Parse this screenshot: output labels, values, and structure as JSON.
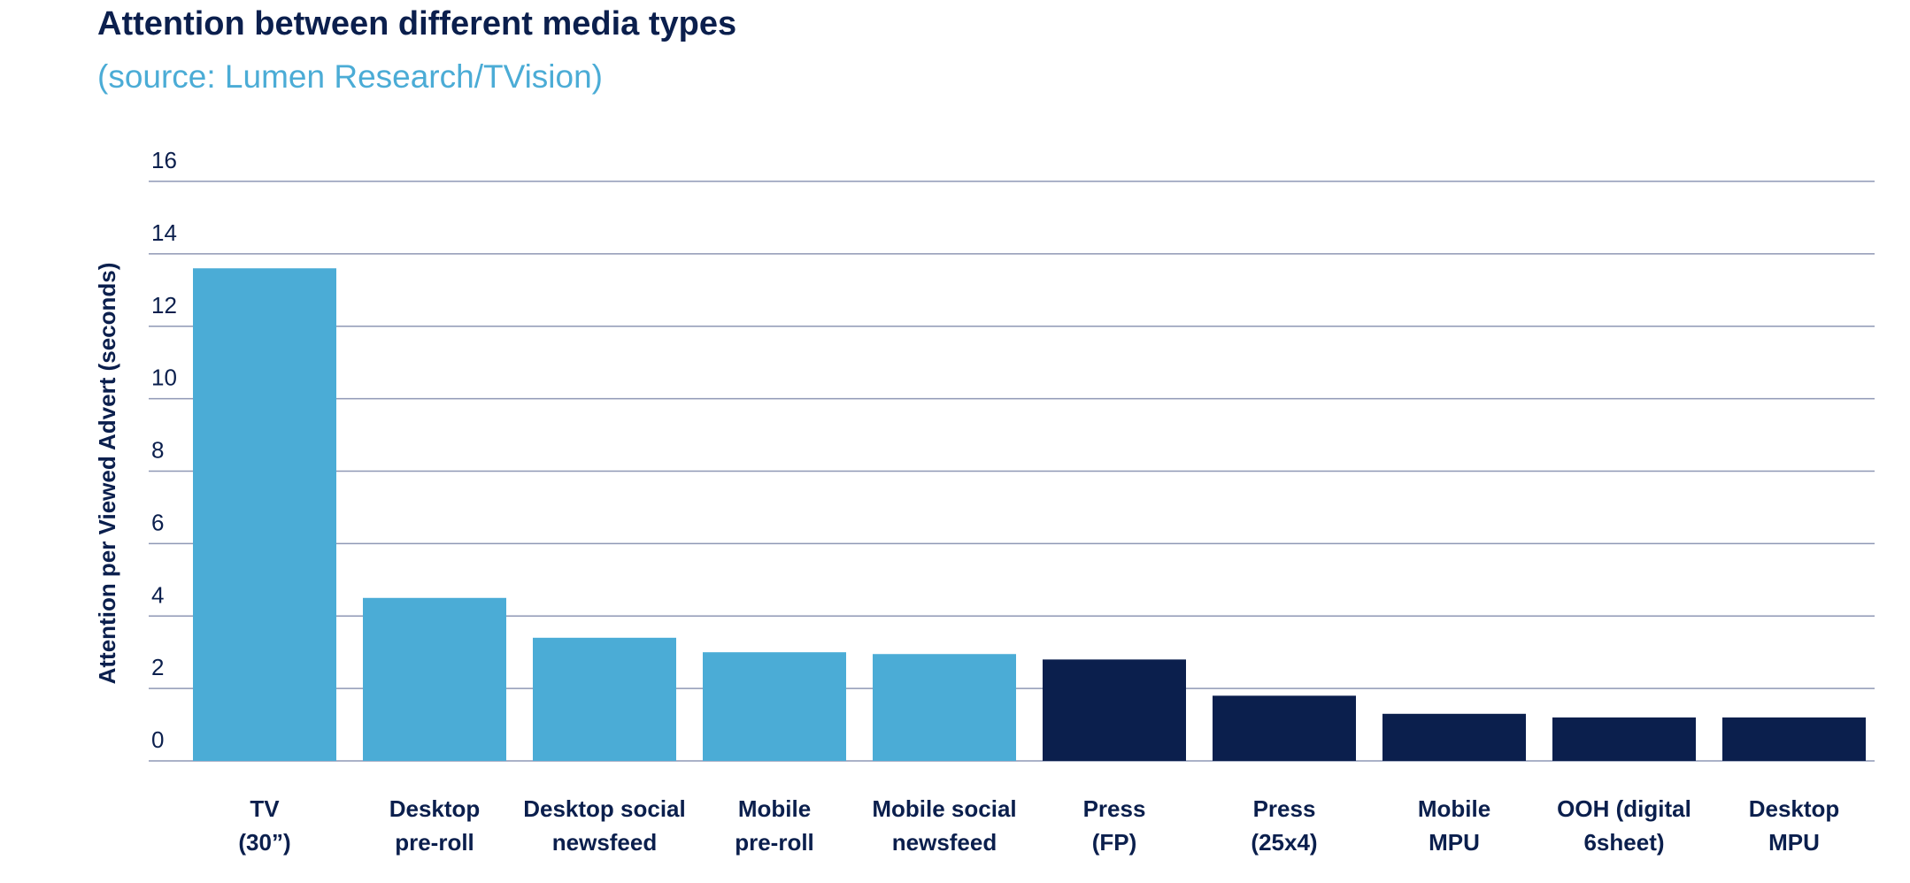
{
  "chart_data": {
    "type": "bar",
    "title": "Attention between different media types",
    "subtitle": "(source: Lumen Research/TVision)",
    "xlabel": "",
    "ylabel": "Attention per Viewed Advert (seconds)",
    "ylim": [
      0,
      16
    ],
    "yticks": [
      "0",
      "2",
      "4",
      "6",
      "8",
      "10",
      "12",
      "14",
      "16"
    ],
    "grid": true,
    "categories": [
      [
        "TV",
        "(30”)"
      ],
      [
        "Desktop",
        "pre-roll"
      ],
      [
        "Desktop social",
        "newsfeed"
      ],
      [
        "Mobile",
        "pre-roll"
      ],
      [
        "Mobile social",
        "newsfeed"
      ],
      [
        "Press",
        "(FP)"
      ],
      [
        "Press",
        "(25x4)"
      ],
      [
        "Mobile",
        "MPU"
      ],
      [
        "OOH (digital",
        "6sheet)"
      ],
      [
        "Desktop",
        "MPU"
      ]
    ],
    "values": [
      13.6,
      4.5,
      3.4,
      3.0,
      2.95,
      2.8,
      1.8,
      1.3,
      1.2,
      1.2
    ],
    "bar_colors": [
      "#4bacd6",
      "#4bacd6",
      "#4bacd6",
      "#4bacd6",
      "#4bacd6",
      "#0b1f4d",
      "#0b1f4d",
      "#0b1f4d",
      "#0b1f4d",
      "#0b1f4d"
    ],
    "gridline_color": "#8f98b5",
    "text_color": "#0b1f4d",
    "accent_color": "#4bacd6"
  }
}
